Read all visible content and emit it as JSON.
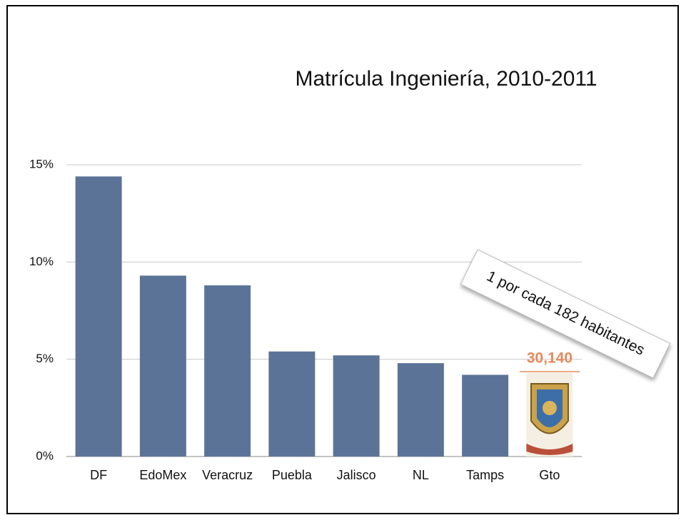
{
  "chart_data": {
    "type": "bar",
    "title": "Matrícula Ingeniería, 2010-2011",
    "categories": [
      "DF",
      "EdoMex",
      "Veracruz",
      "Puebla",
      "Jalisco",
      "NL",
      "Tamps",
      "Gto"
    ],
    "values": [
      14.4,
      9.3,
      8.8,
      5.4,
      5.2,
      4.8,
      4.2,
      4.3
    ],
    "color": "#5b7397",
    "ylim": [
      0,
      15
    ],
    "yticks": [
      {
        "value": 0,
        "label": "0%"
      },
      {
        "value": 5,
        "label": "5%"
      },
      {
        "value": 10,
        "label": "10%"
      },
      {
        "value": 15,
        "label": "15%"
      }
    ],
    "grid": true,
    "annotations": [
      "30,140",
      "1 por cada 182 habitantes"
    ]
  }
}
